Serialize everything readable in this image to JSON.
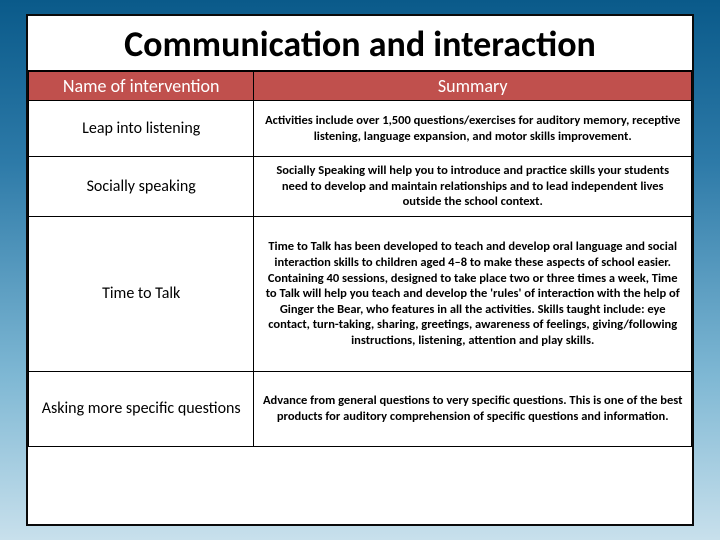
{
  "colors": {
    "header_bg": "#c0504d",
    "header_text": "#ffffff",
    "border": "#000000",
    "body_text": "#000000",
    "slide_bg": "#ffffff",
    "page_gradient_from": "#0a5a8a",
    "page_gradient_to": "#c8e0ec"
  },
  "typography": {
    "title_fontsize": 36,
    "header_fontsize": 18,
    "name_fontsize": 16,
    "summary_fontsize": 12.5,
    "font_family": "Calibri"
  },
  "title": "Communication and interaction",
  "table": {
    "columns": [
      "Name of intervention",
      "Summary"
    ],
    "col_widths_pct": [
      34,
      66
    ],
    "rows": [
      {
        "name": "Leap into listening",
        "summary": "Activities include over 1,500 questions/exercises for auditory memory, receptive listening, language expansion, and motor skills improvement."
      },
      {
        "name": "Socially speaking",
        "summary": "Socially Speaking will help you to introduce and practice skills your students need to develop and maintain relationships and to lead independent lives outside the school context."
      },
      {
        "name": "Time to Talk",
        "summary": "Time to Talk has been developed to teach and develop oral language and social interaction skills to children aged 4–8 to make these aspects of school easier. Containing 40 sessions, designed to take place two or three times a week, Time to Talk will help you teach and develop the 'rules' of interaction with the help of Ginger the Bear, who features in all the activities. Skills taught include: eye contact, turn-taking, sharing, greetings, awareness of feelings, giving/following instructions, listening, attention and play skills."
      },
      {
        "name": "Asking more specific questions",
        "summary": "Advance from general questions to very specific questions. This is one of the best products for auditory comprehension of specific questions and information."
      }
    ]
  }
}
